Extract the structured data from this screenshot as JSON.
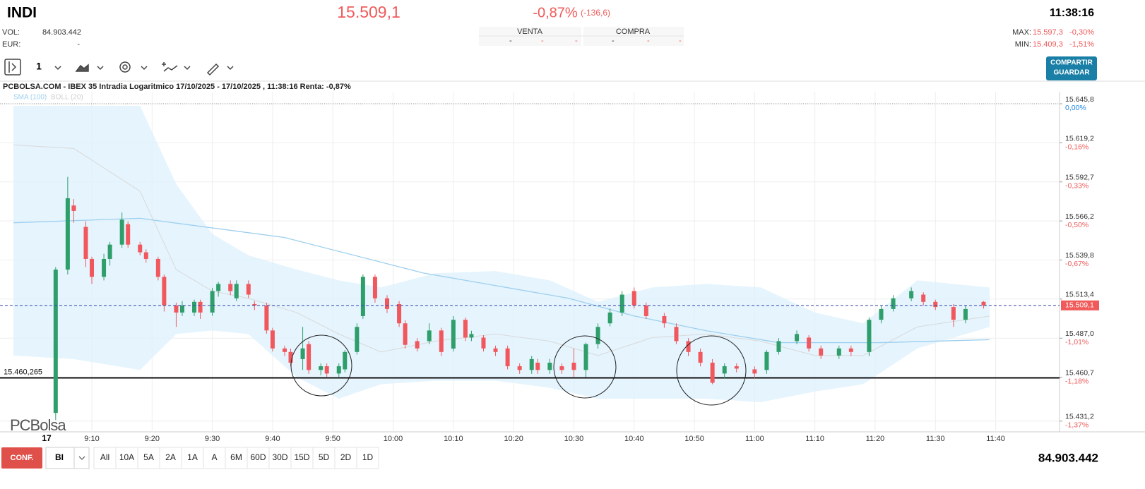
{
  "header": {
    "symbol": "INDI",
    "price": "15.509,1",
    "change_pct": "-0,87%",
    "change_abs": "(-136,6)",
    "time": "11:38:16",
    "vol_label": "VOL:",
    "volume": "84.903.442",
    "eur_label": "EUR:",
    "eur_value": "-",
    "book": {
      "sell_label": "VENTA",
      "buy_label": "COMPRA",
      "cells": [
        "-",
        "-",
        "-",
        "-",
        "-",
        "-"
      ]
    },
    "max_label": "MAX:",
    "max_value": "15.597,3",
    "max_pct": "-0,30%",
    "min_label": "MIN:",
    "min_value": "15.409,3",
    "min_pct": "-1,51%"
  },
  "toolbar": {
    "interval": "1",
    "share": "COMPARTIR",
    "save": "GUARDAR"
  },
  "footer": {
    "config": "CONF.",
    "mode": "BI",
    "periods": [
      "All",
      "10A",
      "5A",
      "2A",
      "1A",
      "A",
      "6M",
      "60D",
      "30D",
      "15D",
      "5D",
      "2D",
      "1D"
    ]
  },
  "chart_data": {
    "type": "candlestick",
    "title": "PCBOLSA.COM - IBEX 35 Intradia Logaritmico 17/10/2025 - 17/10/2025 , 11:38:16 Renta: -0,87%",
    "watermark": "PCBolsa",
    "date_label": "17",
    "log_scale": true,
    "grid": true,
    "xlim": [
      534.76,
      710.6
    ],
    "xticks": [
      {
        "value": 550,
        "label": "9:10"
      },
      {
        "value": 560,
        "label": "9:20"
      },
      {
        "value": 570,
        "label": "9:30"
      },
      {
        "value": 580,
        "label": "9:40"
      },
      {
        "value": 590,
        "label": "9:50"
      },
      {
        "value": 600,
        "label": "10:00"
      },
      {
        "value": 610,
        "label": "10:10"
      },
      {
        "value": 620,
        "label": "10:20"
      },
      {
        "value": 630,
        "label": "10:30"
      },
      {
        "value": 640,
        "label": "10:40"
      },
      {
        "value": 650,
        "label": "10:50"
      },
      {
        "value": 660,
        "label": "11:00"
      },
      {
        "value": 670,
        "label": "11:10"
      },
      {
        "value": 680,
        "label": "11:20"
      },
      {
        "value": 690,
        "label": "11:30"
      },
      {
        "value": 700,
        "label": "11:40"
      }
    ],
    "ylim": [
      15424,
      15654
    ],
    "yticks": [
      {
        "value": 15431.2,
        "label": "15.431,2"
      },
      {
        "value": 15460.7,
        "label": "15.460,7"
      },
      {
        "value": 15487.0,
        "label": "15.487,0"
      },
      {
        "value": 15513.4,
        "label": "15.513,4"
      },
      {
        "value": 15539.8,
        "label": "15.539,8"
      },
      {
        "value": 15566.2,
        "label": "15.566,2"
      },
      {
        "value": 15592.7,
        "label": "15.592,7"
      },
      {
        "value": 15619.2,
        "label": "15.619,2"
      },
      {
        "value": 15645.8,
        "label": "15.645,8"
      }
    ],
    "yticks_pct": [
      "-1,37%",
      "-1,18%",
      "-1,01%",
      null,
      "-0,67%",
      "-0,50%",
      "-0,33%",
      "-0,16%",
      "0,00%"
    ],
    "last_price": {
      "value": 15509.1,
      "label": "15.509,1"
    },
    "support_line": {
      "value": 15460.265,
      "label": "15.460,265"
    },
    "candles": {
      "up_color": "#2e9e6b",
      "down_color": "#f0585e",
      "x": [
        544,
        546,
        547,
        549,
        550,
        552,
        553,
        555,
        556,
        558,
        559,
        561,
        562,
        564,
        565,
        567,
        568,
        570,
        571,
        573,
        574,
        576,
        577,
        579,
        580,
        582,
        583,
        585,
        586,
        588,
        589,
        591,
        592,
        594,
        595,
        597,
        599,
        601,
        602,
        604,
        606,
        608,
        610,
        612,
        613,
        615,
        617,
        619,
        621,
        623,
        624,
        626,
        628,
        630,
        632,
        634,
        636,
        638,
        640,
        642,
        645,
        647,
        649,
        651,
        653,
        655,
        657,
        660,
        662,
        664,
        667,
        669,
        671,
        674,
        676,
        679,
        681,
        683,
        686,
        688,
        690,
        693,
        695,
        698
      ],
      "open": [
        15436.7,
        15533.3,
        15576.7,
        15562.2,
        15540.5,
        15528.4,
        15540.5,
        15550.2,
        15564,
        15550.2,
        15545,
        15540.5,
        15528.4,
        15509.1,
        15504.3,
        15504.3,
        15511.5,
        15504.3,
        15518.8,
        15523.6,
        15513.9,
        15523.6,
        15510,
        15509.1,
        15492.2,
        15480.1,
        15477.7,
        15472.9,
        15483,
        15465.6,
        15468.1,
        15463.2,
        15466,
        15477.7,
        15501.9,
        15528.4,
        15513.9,
        15510,
        15497,
        15485,
        15485,
        15492.2,
        15480,
        15499.4,
        15487.4,
        15487.4,
        15480.1,
        15480.1,
        15468.1,
        15465.6,
        15470.5,
        15465.6,
        15468.1,
        15470.5,
        15465.6,
        15483,
        15497,
        15504.3,
        15518.8,
        15509.1,
        15501.9,
        15494.6,
        15485,
        15477.7,
        15470.5,
        15463.2,
        15468.1,
        15466,
        15465.6,
        15477.7,
        15485,
        15487.4,
        15480.1,
        15475.3,
        15480.1,
        15477.7,
        15499.4,
        15506.7,
        15513.9,
        15516.4,
        15511.5,
        15508,
        15499.4,
        15511.5
      ],
      "high": [
        15535,
        15596.1,
        15581,
        15566,
        15542,
        15544,
        15552,
        15571.9,
        15566,
        15552,
        15547,
        15542,
        15530,
        15511,
        15512,
        15513,
        15513,
        15521,
        15525,
        15526,
        15526,
        15526,
        15512,
        15511,
        15494,
        15482,
        15480,
        15494.6,
        15485,
        15470,
        15470,
        15470,
        15479,
        15497,
        15530,
        15530,
        15516,
        15512,
        15499,
        15487,
        15497,
        15494,
        15501.9,
        15501,
        15492,
        15489,
        15482,
        15482,
        15470,
        15475,
        15473,
        15473,
        15470,
        15480.1,
        15484,
        15497,
        15507,
        15518.8,
        15521.2,
        15511,
        15504,
        15497,
        15487,
        15480,
        15472.9,
        15470,
        15470,
        15468,
        15479,
        15487,
        15492.2,
        15489,
        15482,
        15482,
        15482,
        15501,
        15509,
        15516,
        15521.2,
        15518,
        15513,
        15510,
        15509,
        15512
      ],
      "low": [
        15432,
        15530,
        15565,
        15535,
        15523.6,
        15526,
        15536,
        15548,
        15548,
        15543,
        15538,
        15526,
        15505,
        15494.6,
        15502,
        15502,
        15500,
        15502,
        15515,
        15516,
        15512,
        15514,
        15506,
        15490,
        15478,
        15475,
        15468,
        15465.6,
        15463,
        15462,
        15461,
        15461,
        15464,
        15476,
        15500,
        15511,
        15504,
        15494.6,
        15480,
        15478,
        15483,
        15475,
        15478,
        15485,
        15485,
        15478,
        15475,
        15466,
        15463,
        15463,
        15463,
        15463,
        15463,
        15461,
        15460.8,
        15480,
        15495,
        15502,
        15507,
        15500,
        15494,
        15483,
        15475,
        15468,
        15456,
        15460,
        15464,
        15460,
        15463,
        15476,
        15483,
        15478,
        15473,
        15473,
        15475,
        15475,
        15497,
        15505,
        15512,
        15509,
        15506,
        15494.6,
        15497,
        15507
      ],
      "close": [
        15533.3,
        15581.6,
        15573,
        15540.5,
        15528.4,
        15540.5,
        15550.2,
        15567.1,
        15550.2,
        15545,
        15540.5,
        15528.4,
        15509.1,
        15504.3,
        15509.1,
        15511.5,
        15504.3,
        15518.8,
        15523.6,
        15518.8,
        15523.6,
        15516.4,
        15509.1,
        15492.2,
        15480.1,
        15477.7,
        15470.5,
        15480.1,
        15465.6,
        15468.1,
        15463.2,
        15468.1,
        15477.7,
        15494.6,
        15528.4,
        15513.9,
        15506.7,
        15497,
        15482.5,
        15480.1,
        15492.2,
        15477.7,
        15499.4,
        15487.4,
        15489.8,
        15480.1,
        15477.7,
        15468.1,
        15465.6,
        15472.9,
        15465.6,
        15470.5,
        15465.6,
        15465.6,
        15483,
        15494.6,
        15504.3,
        15516.4,
        15509.1,
        15501.9,
        15497,
        15485,
        15477.7,
        15470.5,
        15457,
        15468.1,
        15466.5,
        15463.2,
        15477.7,
        15485,
        15489.8,
        15480.1,
        15475.3,
        15480.1,
        15477.7,
        15499.4,
        15506.7,
        15513.9,
        15518.8,
        15511.5,
        15508,
        15499.4,
        15506.7,
        15509.1
      ]
    },
    "sma": {
      "name": "SMA (100)",
      "color": "#9ecfee",
      "x": [
        537,
        558,
        582,
        605,
        629,
        640,
        652,
        664,
        681,
        699
      ],
      "values": [
        15565,
        15568,
        15555,
        15531,
        15514,
        15502,
        15492,
        15484,
        15484,
        15486
      ]
    },
    "boll": {
      "name": "BOLL (20)",
      "color": "#dcf0fc",
      "mid_color": "#d9d9d9",
      "x": [
        537,
        547,
        558,
        564,
        570,
        576,
        584,
        591,
        598,
        607,
        617,
        626,
        634,
        643,
        652,
        661,
        670,
        678,
        687,
        699
      ],
      "upper": [
        15644.4,
        15644.4,
        15644.4,
        15591.2,
        15557.4,
        15542.9,
        15533.3,
        15526.0,
        15521.2,
        15530.8,
        15532.3,
        15526.0,
        15511.5,
        15521.2,
        15523.6,
        15521.2,
        15504.3,
        15497.0,
        15526.0,
        15521.2
      ],
      "middle": [
        15617.8,
        15615.4,
        15586.4,
        15533.3,
        15518.8,
        15513.9,
        15504.3,
        15489.8,
        15477.7,
        15485.0,
        15489.8,
        15485.0,
        15475.3,
        15487.4,
        15489.8,
        15485.0,
        15475.3,
        15475.3,
        15494.6,
        15501.9
      ],
      "lower": [
        15475.3,
        15472.9,
        15465.6,
        15489.8,
        15492.2,
        15489.8,
        15460.8,
        15446.3,
        15456.0,
        15458.4,
        15458.4,
        15453.6,
        15446.3,
        15446.3,
        15446.3,
        15443.9,
        15451.1,
        15456.0,
        15480.1,
        15494.6
      ]
    }
  }
}
